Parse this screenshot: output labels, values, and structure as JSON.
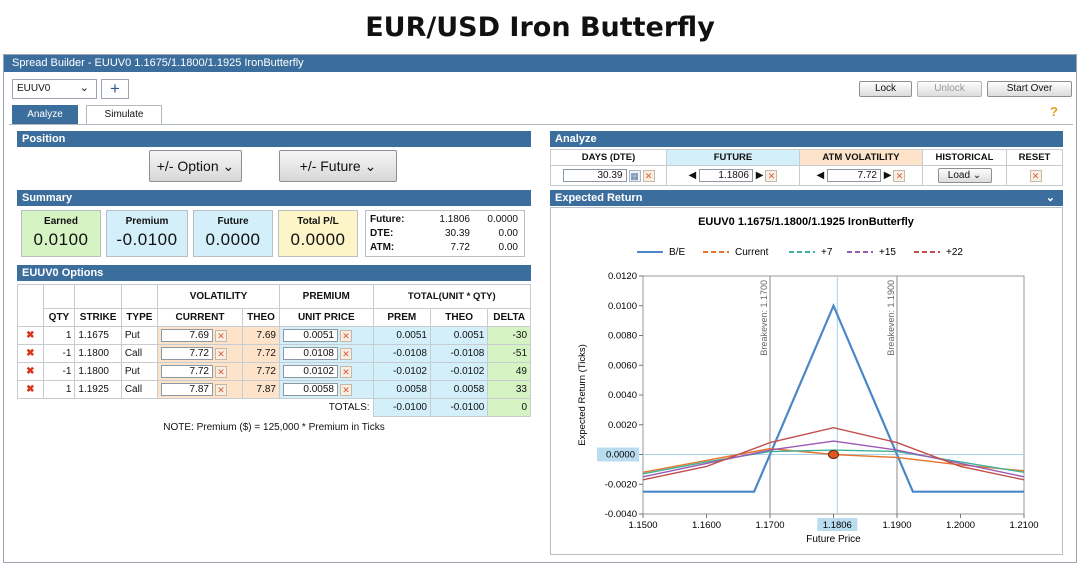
{
  "slide_title": "EUR/USD Iron Butterfly",
  "window_title": "Spread Builder - EUUV0 1.1675/1.1800/1.1925 IronButterfly",
  "instrument_select": "EUUV0",
  "add_tab": "+",
  "toolbar": {
    "lock": "Lock",
    "unlock": "Unlock",
    "start_over": "Start Over"
  },
  "tabs": {
    "analyze": "Analyze",
    "simulate": "Simulate"
  },
  "help_icon": "?",
  "position": {
    "title": "Position",
    "option_btn": "+/- Option",
    "future_btn": "+/- Future"
  },
  "summary": {
    "title": "Summary",
    "boxes": [
      {
        "label": "Earned",
        "value": "0.0100"
      },
      {
        "label": "Premium",
        "value": "-0.0100"
      },
      {
        "label": "Future",
        "value": "0.0000"
      },
      {
        "label": "Total P/L",
        "value": "0.0000"
      }
    ],
    "stats": [
      {
        "label": "Future:",
        "v1": "1.1806",
        "v2": "0.0000"
      },
      {
        "label": "DTE:",
        "v1": "30.39",
        "v2": "0.00"
      },
      {
        "label": "ATM:",
        "v1": "7.72",
        "v2": "0.00"
      }
    ]
  },
  "options": {
    "title": "EUUV0 Options",
    "group_headers": {
      "volatility": "VOLATILITY",
      "premium": "PREMIUM",
      "total": "TOTAL(UNIT * QTY)"
    },
    "headers": [
      "QTY",
      "STRIKE",
      "TYPE",
      "CURRENT",
      "THEO",
      "UNIT PRICE",
      "PREM",
      "THEO",
      "DELTA"
    ],
    "rows": [
      {
        "qty": "1",
        "strike": "1.1675",
        "type": "Put",
        "vol": "7.69",
        "theo": "7.69",
        "unit": "0.0051",
        "prem": "0.0051",
        "ttheo": "0.0051",
        "delta": "-30"
      },
      {
        "qty": "-1",
        "strike": "1.1800",
        "type": "Call",
        "vol": "7.72",
        "theo": "7.72",
        "unit": "0.0108",
        "prem": "-0.0108",
        "ttheo": "-0.0108",
        "delta": "-51"
      },
      {
        "qty": "-1",
        "strike": "1.1800",
        "type": "Put",
        "vol": "7.72",
        "theo": "7.72",
        "unit": "0.0102",
        "prem": "-0.0102",
        "ttheo": "-0.0102",
        "delta": "49"
      },
      {
        "qty": "1",
        "strike": "1.1925",
        "type": "Call",
        "vol": "7.87",
        "theo": "7.87",
        "unit": "0.0058",
        "prem": "0.0058",
        "ttheo": "0.0058",
        "delta": "33"
      }
    ],
    "totals_label": "TOTALS:",
    "totals": {
      "prem": "-0.0100",
      "theo": "-0.0100",
      "delta": "0"
    },
    "note": "NOTE: Premium ($) = 125,000 * Premium in Ticks"
  },
  "analyze": {
    "title": "Analyze",
    "headers": {
      "days": "DAYS (DTE)",
      "future": "FUTURE",
      "atm": "ATM VOLATILITY",
      "historical": "HISTORICAL",
      "reset": "RESET"
    },
    "days_value": "30.39",
    "future_value": "1.1806",
    "atm_value": "7.72",
    "load": "Load"
  },
  "expected_return": {
    "title": "Expected Return"
  },
  "chart_data": {
    "type": "line",
    "title": "EUUV0 1.1675/1.1800/1.1925 IronButterfly",
    "xlabel": "Future Price",
    "ylabel": "Expected Return (Ticks)",
    "xlim": [
      1.15,
      1.21
    ],
    "ylim": [
      -0.004,
      0.012
    ],
    "x_ticks": [
      "1.1500",
      "1.1600",
      "1.1700",
      "1.1800",
      "1.1900",
      "1.2000",
      "1.2100"
    ],
    "y_ticks": [
      "-0.0040",
      "-0.0020",
      "0.0000",
      "0.0020",
      "0.0040",
      "0.0060",
      "0.0080",
      "0.0100",
      "0.0120"
    ],
    "legend": [
      {
        "name": "B/E",
        "color": "#4a86c8",
        "dash": false
      },
      {
        "name": "Current",
        "color": "#e5742c",
        "dash": true
      },
      {
        "name": "+7",
        "color": "#3fb39a",
        "dash": true
      },
      {
        "name": "+15",
        "color": "#9b59b6",
        "dash": true
      },
      {
        "name": "+22",
        "color": "#c0504d",
        "dash": true
      }
    ],
    "series": [
      {
        "name": "B/E",
        "color": "#4a86c8",
        "x": [
          1.15,
          1.1675,
          1.18,
          1.1925,
          1.21
        ],
        "y": [
          -0.0025,
          -0.0025,
          0.01,
          -0.0025,
          -0.0025
        ]
      },
      {
        "name": "Current",
        "color": "#e5742c",
        "x": [
          1.15,
          1.16,
          1.17,
          1.18,
          1.19,
          1.2,
          1.21
        ],
        "y": [
          -0.0012,
          -0.0004,
          0.0004,
          0.0,
          -0.0002,
          -0.0007,
          -0.0011
        ]
      },
      {
        "name": "+7",
        "color": "#3fb39a",
        "x": [
          1.15,
          1.16,
          1.17,
          1.18,
          1.19,
          1.2,
          1.21
        ],
        "y": [
          -0.0013,
          -0.0005,
          0.0002,
          0.0003,
          0.0002,
          -0.0005,
          -0.0012
        ]
      },
      {
        "name": "+15",
        "color": "#9b59b6",
        "x": [
          1.15,
          1.16,
          1.17,
          1.18,
          1.19,
          1.2,
          1.21
        ],
        "y": [
          -0.0015,
          -0.0006,
          0.0003,
          0.0009,
          0.0003,
          -0.0006,
          -0.0015
        ]
      },
      {
        "name": "+22",
        "color": "#c0504d",
        "x": [
          1.15,
          1.16,
          1.17,
          1.18,
          1.19,
          1.2,
          1.21
        ],
        "y": [
          -0.0017,
          -0.0008,
          0.0008,
          0.0018,
          0.0008,
          -0.0008,
          -0.0017
        ]
      }
    ],
    "breakevens": [
      {
        "x": 1.17,
        "label": "Breakeven: 1.1700"
      },
      {
        "x": 1.19,
        "label": "Breakeven: 1.1900"
      }
    ],
    "current_x": 1.1806,
    "current_x_label": "1.1806",
    "current_y_label": "0.0000",
    "marker": {
      "x": 1.18,
      "y": 0.0
    }
  }
}
